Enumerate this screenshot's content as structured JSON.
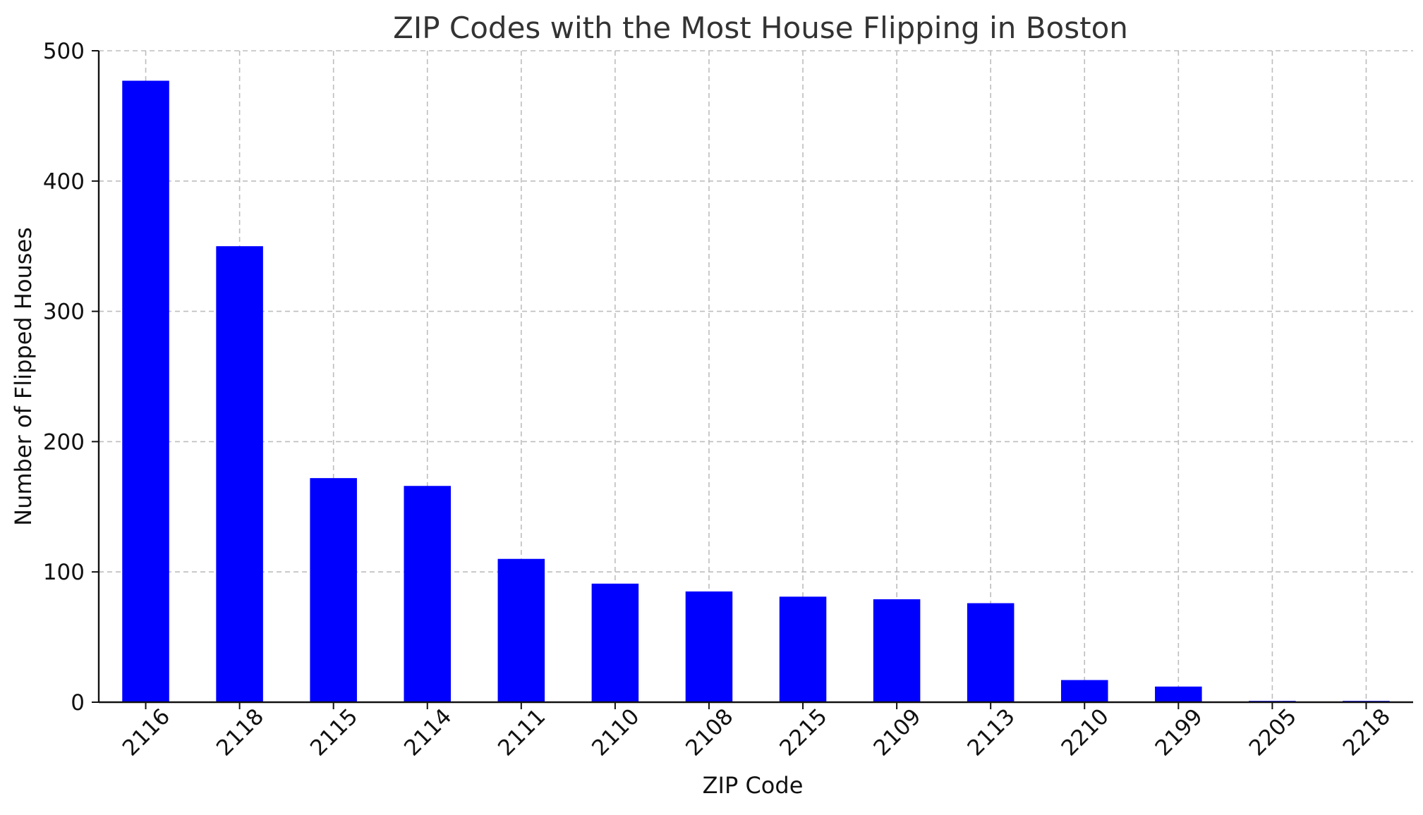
{
  "chart_data": {
    "type": "bar",
    "title": "ZIP Codes with the Most House Flipping in Boston",
    "xlabel": "ZIP Code",
    "ylabel": "Number of Flipped Houses",
    "categories": [
      "2116",
      "2118",
      "2115",
      "2114",
      "2111",
      "2110",
      "2108",
      "2215",
      "2109",
      "2113",
      "2210",
      "2199",
      "2205",
      "2218"
    ],
    "values": [
      477,
      350,
      172,
      166,
      110,
      91,
      85,
      81,
      79,
      76,
      17,
      12,
      1,
      1
    ],
    "ylim": [
      0,
      500
    ],
    "yticks": [
      "0",
      "100",
      "200",
      "300",
      "400",
      "500"
    ],
    "grid": true,
    "bar_color": "#0000ff"
  }
}
